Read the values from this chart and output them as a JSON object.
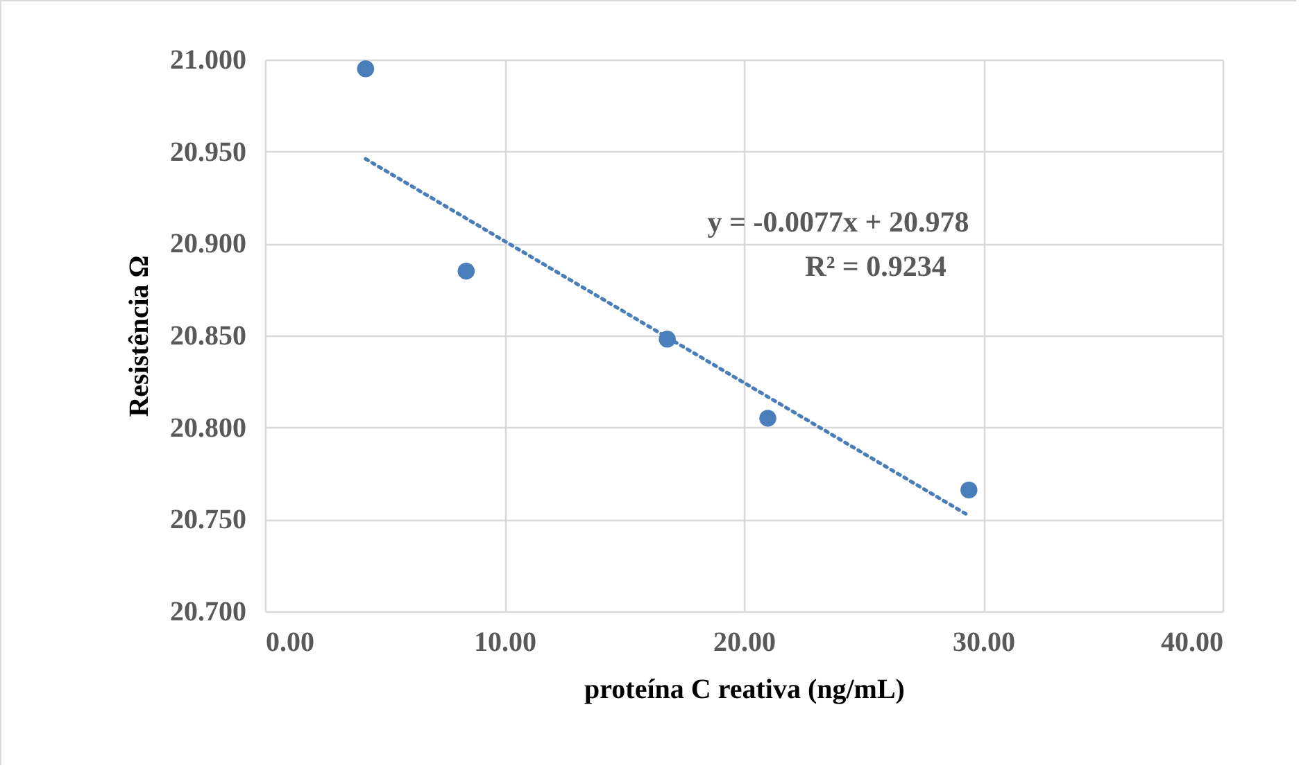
{
  "chart_data": {
    "type": "scatter",
    "xlabel": "proteína C reativa (ng/mL)",
    "ylabel": "Resistência Ω",
    "annotations": [
      "y = -0.0077x + 20.978",
      "R² = 0.9234"
    ],
    "series": [
      {
        "marker": "circle",
        "color": "#4a7ebb",
        "x": [
          4.2,
          8.4,
          16.8,
          21,
          29.4
        ],
        "values": [
          20.995,
          20.885,
          20.848,
          20.805,
          20.766
        ]
      },
      {
        "type": "line",
        "color": "#4a7ebb",
        "line_style": "dotted",
        "x": [
          4.2,
          29.4
        ],
        "values": [
          20.946,
          20.752
        ]
      }
    ],
    "grid": true,
    "xlim": [
      0,
      40
    ],
    "xticks": [
      {
        "value": 0,
        "label": "0.00"
      },
      {
        "value": 10,
        "label": "10.00"
      },
      {
        "value": 20,
        "label": "20.00"
      },
      {
        "value": 30,
        "label": "30.00"
      },
      {
        "value": 40,
        "label": "40.00"
      }
    ],
    "ylim": [
      20.7,
      21
    ],
    "yticks": [
      {
        "value": 20.7,
        "label": "20.700"
      },
      {
        "value": 20.75,
        "label": "20.750"
      },
      {
        "value": 20.8,
        "label": "20.800"
      },
      {
        "value": 20.85,
        "label": "20.850"
      },
      {
        "value": 20.9,
        "label": "20.900"
      },
      {
        "value": 20.95,
        "label": "20.950"
      },
      {
        "value": 21,
        "label": "21.000"
      }
    ]
  }
}
